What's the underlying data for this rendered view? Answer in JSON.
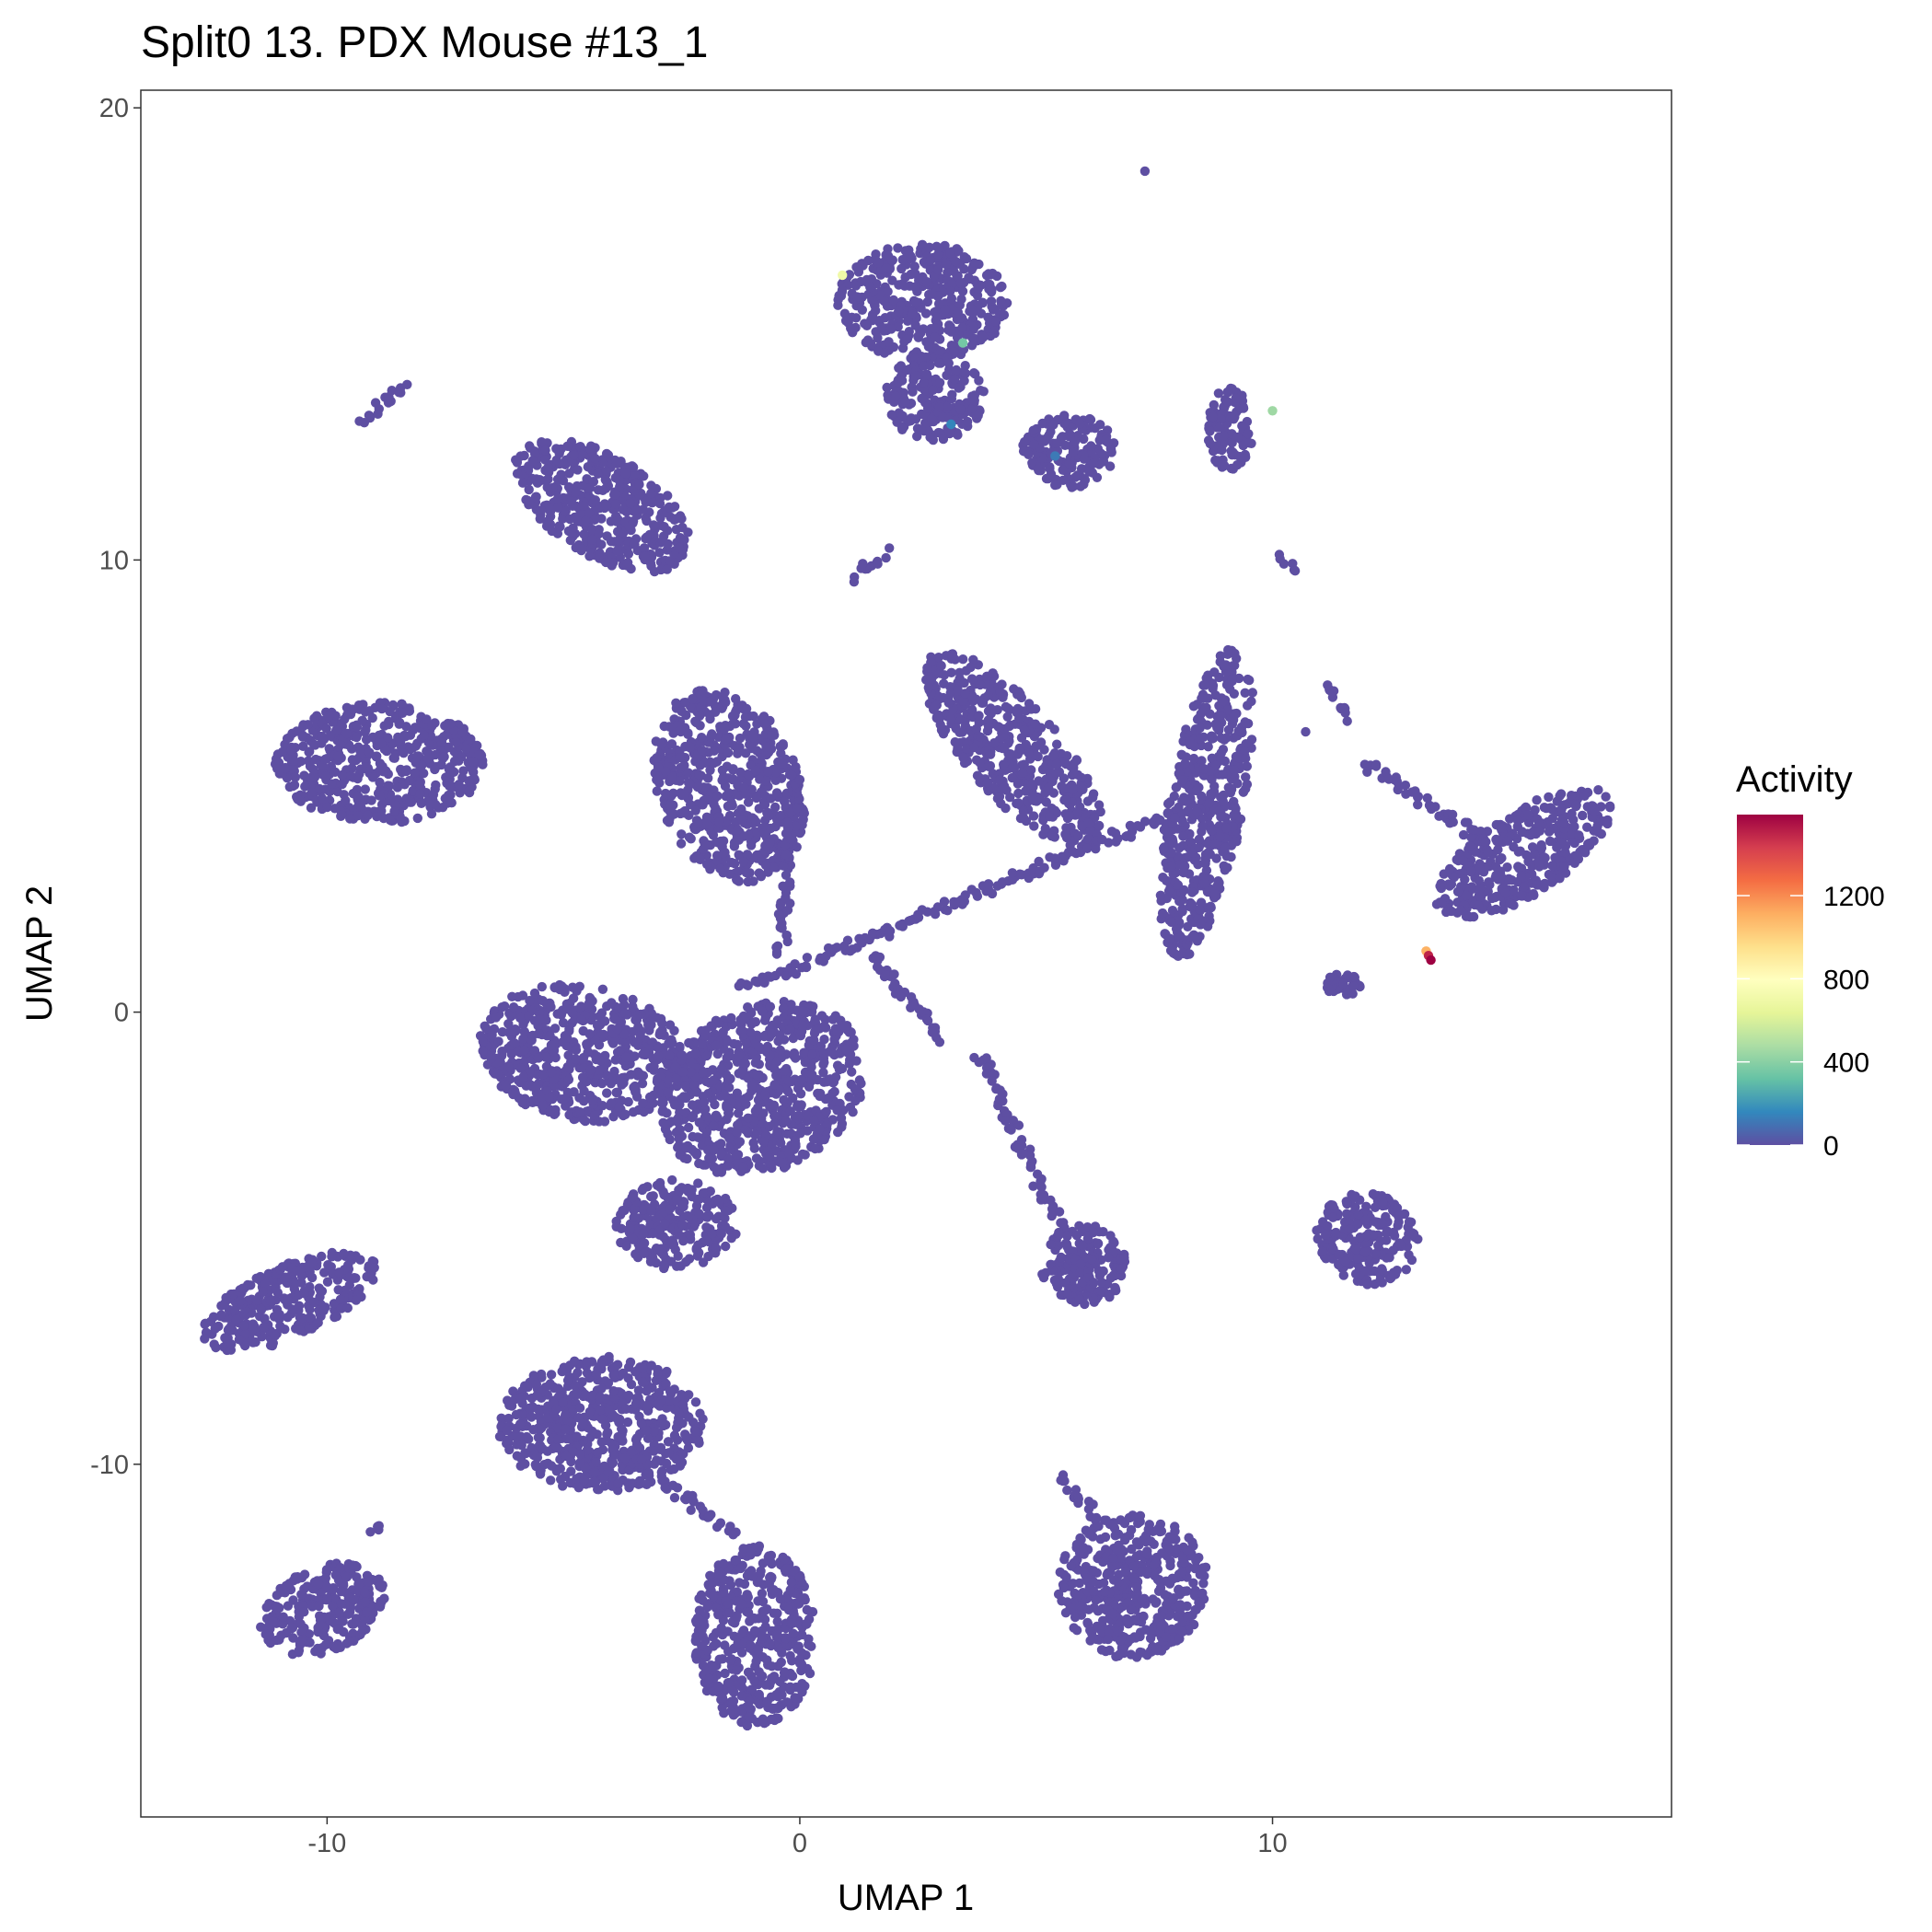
{
  "chart_data": {
    "type": "scatter",
    "title": "Split0 13. PDX Mouse #13_1",
    "xlabel": "UMAP 1",
    "ylabel": "UMAP 2",
    "xlim": [
      -13.94,
      18.44
    ],
    "ylim": [
      -17.8,
      20.39
    ],
    "x_ticks": [
      "-10",
      "0",
      "10"
    ],
    "x_tick_values": [
      -10,
      0,
      10
    ],
    "y_ticks": [
      "-10",
      "0",
      "10",
      "20"
    ],
    "y_tick_values": [
      -10,
      0,
      10,
      20
    ],
    "grid": false,
    "legend": {
      "title": "Activity",
      "placement": "right",
      "type": "colorbar",
      "range": [
        0,
        1590
      ],
      "ticks": [
        "0",
        "400",
        "800",
        "1200"
      ],
      "tick_values": [
        0,
        400,
        800,
        1200
      ],
      "palette": [
        "#5E4FA2",
        "#3288BD",
        "#66C2A5",
        "#ABDDA4",
        "#E6F598",
        "#FFFFBF",
        "#FEE08B",
        "#FDAE61",
        "#F46D43",
        "#D53E4F",
        "#9E0142"
      ]
    },
    "base_color": "#5E4FA2",
    "clusters": [
      {
        "center": [
          2.6,
          15.7
        ],
        "rx": 1.8,
        "ry": 1.3,
        "angle": 0,
        "activity": 0
      },
      {
        "center": [
          2.85,
          13.6
        ],
        "rx": 1.05,
        "ry": 0.95,
        "angle": 0,
        "activity": 0
      },
      {
        "center": [
          5.7,
          12.4
        ],
        "rx": 1.0,
        "ry": 0.8,
        "angle": 0,
        "activity": 0
      },
      {
        "center": [
          9.1,
          12.9
        ],
        "rx": 0.5,
        "ry": 0.9,
        "angle": 0,
        "activity": 0
      },
      {
        "center": [
          -4.2,
          11.2
        ],
        "rx": 2.1,
        "ry": 1.1,
        "angle": -33,
        "activity": 0
      },
      {
        "center": [
          -8.9,
          5.5
        ],
        "rx": 2.2,
        "ry": 1.35,
        "angle": 0,
        "activity": 0
      },
      {
        "center": [
          -1.5,
          5.0
        ],
        "rx": 1.5,
        "ry": 2.2,
        "angle": 20,
        "activity": 0
      },
      {
        "center": [
          -4.6,
          -0.9
        ],
        "rx": 2.2,
        "ry": 1.5,
        "angle": -10,
        "activity": 0
      },
      {
        "center": [
          -0.8,
          -1.7
        ],
        "rx": 2.3,
        "ry": 1.8,
        "angle": 30,
        "activity": 0
      },
      {
        "center": [
          -2.6,
          -4.7
        ],
        "rx": 1.3,
        "ry": 1.0,
        "angle": 0,
        "activity": 0
      },
      {
        "center": [
          -10.8,
          -6.4
        ],
        "rx": 2.0,
        "ry": 0.8,
        "angle": 25,
        "activity": 0
      },
      {
        "center": [
          -4.2,
          -9.1
        ],
        "rx": 2.2,
        "ry": 1.5,
        "angle": 0,
        "activity": 0
      },
      {
        "center": [
          -10.1,
          -13.2
        ],
        "rx": 1.4,
        "ry": 0.95,
        "angle": 25,
        "activity": 0
      },
      {
        "center": [
          -0.95,
          -13.8
        ],
        "rx": 1.3,
        "ry": 2.0,
        "angle": 0,
        "activity": 0
      },
      {
        "center": [
          7.05,
          -12.7
        ],
        "rx": 1.6,
        "ry": 1.6,
        "angle": 0,
        "activity": 0
      },
      {
        "center": [
          12.0,
          -5.0
        ],
        "rx": 1.1,
        "ry": 1.0,
        "angle": -30,
        "activity": 0
      },
      {
        "center": [
          15.3,
          3.5
        ],
        "rx": 2.2,
        "ry": 0.9,
        "angle": 35,
        "activity": 0
      },
      {
        "center": [
          4.5,
          5.8
        ],
        "rx": 2.7,
        "ry": 1.0,
        "angle": -50,
        "activity": 0
      },
      {
        "center": [
          8.6,
          4.6
        ],
        "rx": 3.5,
        "ry": 0.8,
        "angle": 80,
        "activity": 0
      },
      {
        "center": [
          6.0,
          -5.6
        ],
        "rx": 0.9,
        "ry": 0.9,
        "angle": 0,
        "activity": 0
      },
      {
        "center": [
          11.5,
          0.6
        ],
        "rx": 0.4,
        "ry": 0.25,
        "angle": 0,
        "activity": 0
      }
    ],
    "streaks": [
      {
        "from": [
          -1.2,
          0.5
        ],
        "to": [
          7.7,
          4.3
        ],
        "activity": 0
      },
      {
        "from": [
          -0.4,
          1.3
        ],
        "to": [
          -0.1,
          5.2
        ],
        "activity": 0
      },
      {
        "from": [
          1.5,
          1.3
        ],
        "to": [
          3.0,
          -0.6
        ],
        "activity": 0
      },
      {
        "from": [
          3.8,
          -0.9
        ],
        "to": [
          6.1,
          -6.1
        ],
        "activity": 0
      },
      {
        "from": [
          12.0,
          5.5
        ],
        "to": [
          14.5,
          3.75
        ],
        "activity": 0
      },
      {
        "from": [
          1.15,
          9.6
        ],
        "to": [
          1.8,
          10.2
        ],
        "activity": 0
      },
      {
        "from": [
          -9.2,
          13.1
        ],
        "to": [
          -8.4,
          13.9
        ],
        "activity": 0
      },
      {
        "from": [
          10.2,
          10.1
        ],
        "to": [
          10.5,
          9.8
        ],
        "activity": 0
      },
      {
        "from": [
          11.2,
          7.2
        ],
        "to": [
          11.5,
          6.5
        ],
        "activity": 0
      },
      {
        "from": [
          5.5,
          -10.3
        ],
        "to": [
          6.3,
          -11.2
        ],
        "activity": 0
      },
      {
        "from": [
          -3.0,
          -10.3
        ],
        "to": [
          -1.4,
          -11.6
        ],
        "activity": 0
      },
      {
        "from": [
          -9.0,
          -11.5
        ],
        "to": [
          -8.8,
          -11.3
        ],
        "activity": 0
      }
    ],
    "points": [
      {
        "x": 7.3,
        "y": 18.6,
        "activity": 0
      },
      {
        "x": 10.7,
        "y": 6.2,
        "activity": 0
      },
      {
        "x": 0.9,
        "y": 16.3,
        "activity": 700
      },
      {
        "x": 3.45,
        "y": 14.8,
        "activity": 350
      },
      {
        "x": 10.0,
        "y": 13.3,
        "activity": 450
      },
      {
        "x": 3.2,
        "y": 13.0,
        "activity": 150
      },
      {
        "x": 5.4,
        "y": 12.3,
        "activity": 120
      },
      {
        "x": 13.25,
        "y": 1.35,
        "activity": 1100
      },
      {
        "x": 13.3,
        "y": 1.25,
        "activity": 1500
      },
      {
        "x": 13.35,
        "y": 1.15,
        "activity": 1590
      }
    ]
  }
}
